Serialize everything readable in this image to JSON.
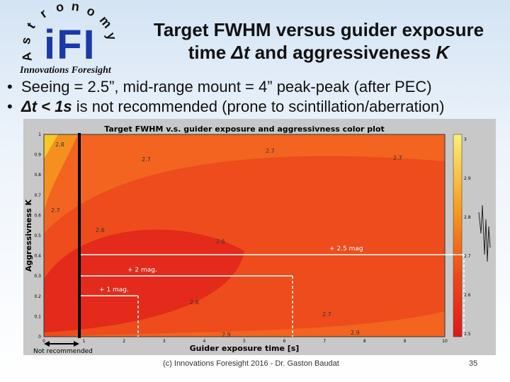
{
  "logo": {
    "arc": "Astronomy",
    "mark": "iFI",
    "company": "Innovations Foresight"
  },
  "title": {
    "line1": "Target FWHM versus guider exposure",
    "line2_a": "time ",
    "line2_dt": "Δt",
    "line2_b": " and aggressiveness ",
    "line2_k": "K"
  },
  "bullets": [
    {
      "text": "Seeing = 2.5”, mid-range mount = 4” peak-peak (after PEC)"
    },
    {
      "math": "Δt < 1s",
      "text": " is not recommended (prone to scintillation/aberration)"
    }
  ],
  "plot": {
    "title": "Target FWHM v.s. guider exposure and aggressivness color plot",
    "x_label": "Guider exposure time [s]",
    "y_label": "Aggressivness K",
    "x_ticks": [
      "0",
      "1",
      "2",
      "3",
      "4",
      "5",
      "6",
      "7",
      "8",
      "9",
      "10"
    ],
    "y_ticks": [
      "0",
      "0.1",
      "0.2",
      "0.3",
      "0.4",
      "0.5",
      "0.6",
      "0.7",
      "0.8",
      "0.9",
      "1"
    ],
    "colorbar_ticks": [
      "2.5",
      "2.6",
      "2.7",
      "2.8",
      "2.9",
      "3"
    ],
    "contour_labels": [
      "2.7",
      "2.7",
      "2.7",
      "2.7",
      "2.6",
      "2.6",
      "2.6",
      "2.7",
      "2.9",
      "2.9",
      "2.8"
    ],
    "annotations": [
      "+ 2.5 mag",
      "+ 2 mag.",
      "+ 1 mag.",
      "Not recommended"
    ]
  },
  "footer": {
    "credit": "(c) Innovations Foresight 2016 - Dr. Gaston Baudat",
    "page": "35"
  }
}
